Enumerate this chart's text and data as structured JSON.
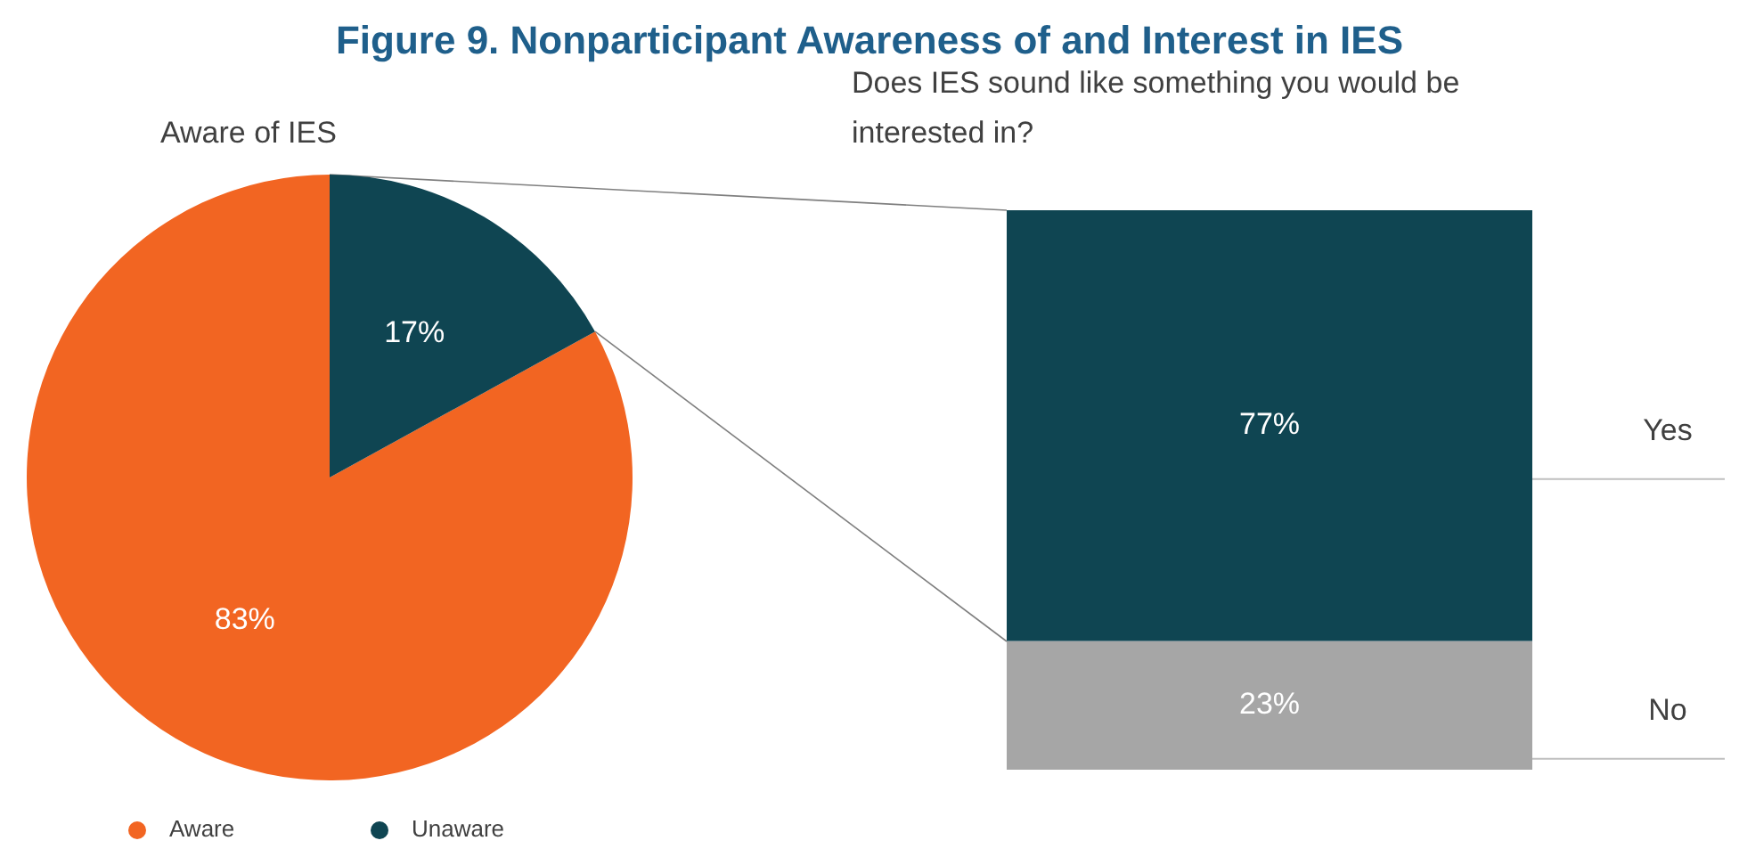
{
  "chart_data": [
    {
      "type": "pie",
      "title": "Figure 9. Nonparticipant Awareness of and Interest in IES",
      "subtitle": "Aware of IES",
      "categories": [
        "Aware",
        "Unaware"
      ],
      "values": [
        83,
        17
      ],
      "colors": [
        "#f26522",
        "#0f4552"
      ],
      "value_labels": [
        "83%",
        "17%"
      ],
      "legend": "bottom"
    },
    {
      "type": "bar",
      "title": "Does IES sound like something you would be interested in?",
      "categories": [
        null
      ],
      "stacked": true,
      "series": [
        {
          "name": "No",
          "color": "#a6a6a6",
          "values": [
            23
          ],
          "value_labels": [
            "23%"
          ]
        },
        {
          "name": "Yes",
          "color": "#0f4552",
          "values": [
            77
          ],
          "value_labels": [
            "77%"
          ]
        }
      ]
    }
  ]
}
